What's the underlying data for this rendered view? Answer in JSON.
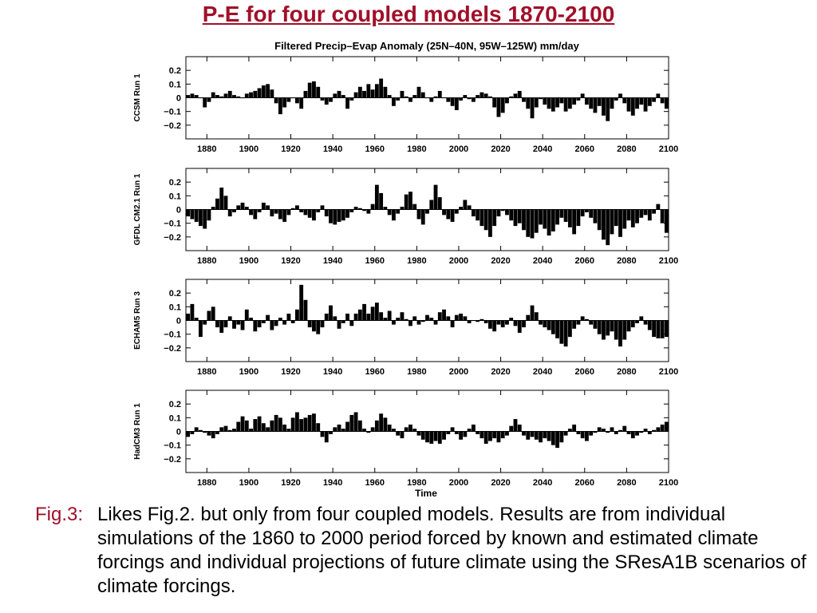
{
  "title": "P-E for four coupled models 1870-2100",
  "caption": {
    "label": "Fig.3:",
    "text": "Likes Fig.2. but only from four coupled models. Results are from individual simulations of the 1860 to 2000 period forced by known and estimated climate forcings and individual projections of future climate using the SResA1B scenarios of climate forcings."
  },
  "chart_title": "Filtered Precip–Evap Anomaly (25N–40N, 95W–125W) mm/day",
  "xlabel": "Time",
  "chart_data": [
    {
      "type": "bar",
      "ylabel": "CCSM Run 1",
      "xlim": [
        1870,
        2100
      ],
      "ylim": [
        -0.3,
        0.3
      ],
      "yticks": [
        0.2,
        0.1,
        0,
        -0.1,
        -0.2
      ],
      "ytick_labels": [
        "0.2",
        "0.1",
        "0",
        "−0.1",
        "−0.2"
      ],
      "xticks": [
        1880,
        1900,
        1920,
        1940,
        1960,
        1980,
        2000,
        2020,
        2040,
        2060,
        2080,
        2100
      ],
      "x": [
        1871,
        1873,
        1875,
        1877,
        1879,
        1881,
        1883,
        1885,
        1887,
        1889,
        1891,
        1893,
        1895,
        1897,
        1899,
        1901,
        1903,
        1905,
        1907,
        1909,
        1911,
        1913,
        1915,
        1917,
        1919,
        1921,
        1923,
        1925,
        1927,
        1929,
        1931,
        1933,
        1935,
        1937,
        1939,
        1941,
        1943,
        1945,
        1947,
        1949,
        1951,
        1953,
        1955,
        1957,
        1959,
        1961,
        1963,
        1965,
        1967,
        1969,
        1971,
        1973,
        1975,
        1977,
        1979,
        1981,
        1983,
        1985,
        1987,
        1989,
        1991,
        1993,
        1995,
        1997,
        1999,
        2001,
        2003,
        2005,
        2007,
        2009,
        2011,
        2013,
        2015,
        2017,
        2019,
        2021,
        2023,
        2025,
        2027,
        2029,
        2031,
        2033,
        2035,
        2037,
        2039,
        2041,
        2043,
        2045,
        2047,
        2049,
        2051,
        2053,
        2055,
        2057,
        2059,
        2061,
        2063,
        2065,
        2067,
        2069,
        2071,
        2073,
        2075,
        2077,
        2079,
        2081,
        2083,
        2085,
        2087,
        2089,
        2091,
        2093,
        2095,
        2097,
        2099
      ],
      "values": [
        0.02,
        0.03,
        0.02,
        0.0,
        -0.07,
        -0.03,
        0.04,
        0.02,
        0.01,
        0.03,
        0.05,
        0.02,
        0.01,
        0.0,
        0.03,
        0.04,
        0.05,
        0.07,
        0.09,
        0.1,
        0.06,
        -0.04,
        -0.12,
        -0.07,
        -0.03,
        0.0,
        -0.04,
        -0.08,
        0.05,
        0.11,
        0.12,
        0.08,
        -0.02,
        -0.05,
        -0.03,
        0.03,
        0.05,
        0.02,
        -0.08,
        -0.02,
        0.04,
        0.08,
        0.05,
        0.1,
        0.06,
        0.1,
        0.14,
        0.08,
        0.02,
        -0.06,
        -0.02,
        0.05,
        0.01,
        -0.03,
        0.02,
        0.08,
        0.04,
        0.0,
        -0.03,
        0.01,
        0.05,
        0.0,
        -0.03,
        -0.06,
        -0.09,
        -0.02,
        0.02,
        -0.01,
        -0.03,
        0.02,
        0.04,
        0.03,
        0.01,
        -0.07,
        -0.14,
        -0.11,
        -0.04,
        0.01,
        0.03,
        0.05,
        -0.03,
        -0.08,
        -0.15,
        -0.07,
        -0.01,
        -0.05,
        -0.08,
        -0.1,
        -0.07,
        -0.04,
        -0.1,
        -0.08,
        -0.05,
        -0.02,
        0.03,
        -0.05,
        -0.08,
        -0.11,
        -0.06,
        -0.13,
        -0.17,
        -0.08,
        -0.02,
        0.03,
        -0.04,
        -0.1,
        -0.13,
        -0.08,
        -0.05,
        -0.1,
        -0.06,
        -0.03,
        0.03,
        -0.04,
        -0.08
      ]
    },
    {
      "type": "bar",
      "ylabel": "GFDL CM2.1 Run 1",
      "xlim": [
        1870,
        2100
      ],
      "ylim": [
        -0.3,
        0.3
      ],
      "yticks": [
        0.2,
        0.1,
        0,
        -0.1,
        -0.2
      ],
      "ytick_labels": [
        "0.2",
        "0.1",
        "0",
        "−0.1",
        "−0.2"
      ],
      "xticks": [
        1880,
        1900,
        1920,
        1940,
        1960,
        1980,
        2000,
        2020,
        2040,
        2060,
        2080,
        2100
      ],
      "x": [
        1871,
        1873,
        1875,
        1877,
        1879,
        1881,
        1883,
        1885,
        1887,
        1889,
        1891,
        1893,
        1895,
        1897,
        1899,
        1901,
        1903,
        1905,
        1907,
        1909,
        1911,
        1913,
        1915,
        1917,
        1919,
        1921,
        1923,
        1925,
        1927,
        1929,
        1931,
        1933,
        1935,
        1937,
        1939,
        1941,
        1943,
        1945,
        1947,
        1949,
        1951,
        1953,
        1955,
        1957,
        1959,
        1961,
        1963,
        1965,
        1967,
        1969,
        1971,
        1973,
        1975,
        1977,
        1979,
        1981,
        1983,
        1985,
        1987,
        1989,
        1991,
        1993,
        1995,
        1997,
        1999,
        2001,
        2003,
        2005,
        2007,
        2009,
        2011,
        2013,
        2015,
        2017,
        2019,
        2021,
        2023,
        2025,
        2027,
        2029,
        2031,
        2033,
        2035,
        2037,
        2039,
        2041,
        2043,
        2045,
        2047,
        2049,
        2051,
        2053,
        2055,
        2057,
        2059,
        2061,
        2063,
        2065,
        2067,
        2069,
        2071,
        2073,
        2075,
        2077,
        2079,
        2081,
        2083,
        2085,
        2087,
        2089,
        2091,
        2093,
        2095,
        2097,
        2099
      ],
      "values": [
        -0.05,
        -0.07,
        -0.09,
        -0.12,
        -0.14,
        -0.08,
        0.02,
        0.08,
        0.16,
        0.1,
        -0.05,
        -0.02,
        0.03,
        0.05,
        0.02,
        -0.04,
        -0.07,
        -0.02,
        0.05,
        0.03,
        -0.05,
        -0.03,
        -0.07,
        -0.09,
        -0.04,
        0.01,
        0.03,
        -0.02,
        -0.04,
        -0.06,
        -0.08,
        -0.02,
        0.03,
        -0.05,
        -0.1,
        -0.11,
        -0.09,
        -0.08,
        -0.06,
        -0.02,
        0.02,
        0.01,
        -0.01,
        -0.03,
        0.04,
        0.18,
        0.12,
        0.02,
        -0.04,
        -0.08,
        -0.03,
        0.02,
        0.11,
        0.13,
        0.04,
        -0.07,
        -0.11,
        -0.03,
        0.07,
        0.18,
        0.09,
        -0.04,
        -0.07,
        -0.09,
        -0.03,
        0.02,
        0.07,
        0.03,
        -0.05,
        -0.08,
        -0.12,
        -0.15,
        -0.2,
        -0.12,
        -0.05,
        -0.01,
        -0.04,
        -0.08,
        -0.12,
        -0.1,
        -0.15,
        -0.2,
        -0.21,
        -0.17,
        -0.11,
        -0.14,
        -0.19,
        -0.16,
        -0.11,
        -0.06,
        -0.09,
        -0.13,
        -0.18,
        -0.12,
        -0.05,
        -0.02,
        -0.06,
        -0.1,
        -0.15,
        -0.22,
        -0.26,
        -0.18,
        -0.12,
        -0.2,
        -0.14,
        -0.08,
        -0.13,
        -0.1,
        -0.06,
        -0.04,
        -0.08,
        -0.03,
        0.04,
        -0.1,
        -0.17
      ]
    },
    {
      "type": "bar",
      "ylabel": "ECHAM5 Run 3",
      "xlim": [
        1870,
        2100
      ],
      "ylim": [
        -0.3,
        0.3
      ],
      "yticks": [
        0.2,
        0.1,
        0,
        -0.1,
        -0.2
      ],
      "ytick_labels": [
        "0.2",
        "0.1",
        "0",
        "−0.1",
        "−0.2"
      ],
      "xticks": [
        1880,
        1900,
        1920,
        1940,
        1960,
        1980,
        2000,
        2020,
        2040,
        2060,
        2080,
        2100
      ],
      "x": [
        1871,
        1873,
        1875,
        1877,
        1879,
        1881,
        1883,
        1885,
        1887,
        1889,
        1891,
        1893,
        1895,
        1897,
        1899,
        1901,
        1903,
        1905,
        1907,
        1909,
        1911,
        1913,
        1915,
        1917,
        1919,
        1921,
        1923,
        1925,
        1927,
        1929,
        1931,
        1933,
        1935,
        1937,
        1939,
        1941,
        1943,
        1945,
        1947,
        1949,
        1951,
        1953,
        1955,
        1957,
        1959,
        1961,
        1963,
        1965,
        1967,
        1969,
        1971,
        1973,
        1975,
        1977,
        1979,
        1981,
        1983,
        1985,
        1987,
        1989,
        1991,
        1993,
        1995,
        1997,
        1999,
        2001,
        2003,
        2005,
        2007,
        2009,
        2011,
        2013,
        2015,
        2017,
        2019,
        2021,
        2023,
        2025,
        2027,
        2029,
        2031,
        2033,
        2035,
        2037,
        2039,
        2041,
        2043,
        2045,
        2047,
        2049,
        2051,
        2053,
        2055,
        2057,
        2059,
        2061,
        2063,
        2065,
        2067,
        2069,
        2071,
        2073,
        2075,
        2077,
        2079,
        2081,
        2083,
        2085,
        2087,
        2089,
        2091,
        2093,
        2095,
        2097,
        2099
      ],
      "values": [
        0.05,
        0.12,
        0.02,
        -0.12,
        -0.03,
        0.07,
        0.1,
        -0.05,
        -0.09,
        -0.05,
        0.03,
        -0.06,
        -0.03,
        -0.07,
        0.08,
        0.02,
        -0.08,
        -0.05,
        -0.02,
        0.04,
        -0.07,
        -0.04,
        0.02,
        -0.03,
        0.05,
        -0.02,
        0.08,
        0.26,
        0.15,
        -0.05,
        -0.08,
        -0.1,
        -0.05,
        0.05,
        0.11,
        0.03,
        -0.06,
        -0.02,
        0.05,
        -0.04,
        0.05,
        0.08,
        0.12,
        0.05,
        0.1,
        0.13,
        0.06,
        0.02,
        0.07,
        -0.03,
        0.02,
        0.06,
        0.01,
        -0.04,
        0.03,
        -0.03,
        -0.01,
        0.04,
        0.02,
        -0.03,
        0.06,
        0.08,
        0.03,
        -0.05,
        0.04,
        0.05,
        0.03,
        -0.02,
        0.0,
        -0.01,
        0.01,
        -0.02,
        -0.06,
        -0.08,
        -0.03,
        -0.05,
        -0.03,
        0.02,
        -0.04,
        -0.09,
        -0.05,
        0.04,
        0.11,
        0.06,
        -0.03,
        -0.05,
        -0.07,
        -0.1,
        -0.13,
        -0.17,
        -0.19,
        -0.12,
        -0.06,
        -0.03,
        0.03,
        0.01,
        -0.03,
        -0.06,
        -0.1,
        -0.14,
        -0.11,
        -0.08,
        -0.14,
        -0.19,
        -0.14,
        -0.08,
        -0.05,
        -0.02,
        0.03,
        -0.03,
        -0.07,
        -0.12,
        -0.13,
        -0.13,
        -0.12
      ]
    },
    {
      "type": "bar",
      "ylabel": "HadCM3 Run 1",
      "xlim": [
        1870,
        2100
      ],
      "ylim": [
        -0.3,
        0.3
      ],
      "yticks": [
        0.2,
        0.1,
        0,
        -0.1,
        -0.2
      ],
      "ytick_labels": [
        "0.2",
        "0.1",
        "0",
        "−0.1",
        "−0.2"
      ],
      "xticks": [
        1880,
        1900,
        1920,
        1940,
        1960,
        1980,
        2000,
        2020,
        2040,
        2060,
        2080,
        2100
      ],
      "x": [
        1871,
        1873,
        1875,
        1877,
        1879,
        1881,
        1883,
        1885,
        1887,
        1889,
        1891,
        1893,
        1895,
        1897,
        1899,
        1901,
        1903,
        1905,
        1907,
        1909,
        1911,
        1913,
        1915,
        1917,
        1919,
        1921,
        1923,
        1925,
        1927,
        1929,
        1931,
        1933,
        1935,
        1937,
        1939,
        1941,
        1943,
        1945,
        1947,
        1949,
        1951,
        1953,
        1955,
        1957,
        1959,
        1961,
        1963,
        1965,
        1967,
        1969,
        1971,
        1973,
        1975,
        1977,
        1979,
        1981,
        1983,
        1985,
        1987,
        1989,
        1991,
        1993,
        1995,
        1997,
        1999,
        2001,
        2003,
        2005,
        2007,
        2009,
        2011,
        2013,
        2015,
        2017,
        2019,
        2021,
        2023,
        2025,
        2027,
        2029,
        2031,
        2033,
        2035,
        2037,
        2039,
        2041,
        2043,
        2045,
        2047,
        2049,
        2051,
        2053,
        2055,
        2057,
        2059,
        2061,
        2063,
        2065,
        2067,
        2069,
        2071,
        2073,
        2075,
        2077,
        2079,
        2081,
        2083,
        2085,
        2087,
        2089,
        2091,
        2093,
        2095,
        2097,
        2099
      ],
      "values": [
        -0.04,
        -0.02,
        0.03,
        0.01,
        -0.01,
        -0.03,
        -0.05,
        -0.02,
        0.03,
        0.04,
        0.01,
        0.02,
        0.07,
        0.11,
        0.08,
        0.02,
        0.09,
        0.11,
        0.06,
        0.03,
        0.08,
        0.12,
        0.1,
        0.05,
        0.02,
        0.1,
        0.14,
        0.09,
        0.1,
        0.12,
        0.13,
        0.06,
        -0.04,
        -0.08,
        -0.02,
        0.03,
        0.05,
        0.02,
        0.07,
        0.12,
        0.14,
        0.08,
        0.02,
        -0.01,
        0.03,
        0.08,
        0.13,
        0.1,
        0.05,
        0.02,
        -0.03,
        -0.05,
        0.03,
        0.05,
        0.02,
        -0.03,
        -0.06,
        -0.08,
        -0.09,
        -0.07,
        -0.09,
        -0.06,
        -0.02,
        0.03,
        -0.02,
        -0.06,
        -0.04,
        0.02,
        0.05,
        -0.02,
        -0.05,
        -0.09,
        -0.07,
        -0.05,
        -0.08,
        -0.05,
        -0.03,
        0.04,
        0.09,
        0.05,
        -0.03,
        -0.06,
        -0.04,
        -0.06,
        -0.08,
        -0.05,
        -0.07,
        -0.1,
        -0.12,
        -0.08,
        -0.03,
        0.02,
        0.05,
        -0.02,
        -0.05,
        -0.07,
        -0.03,
        -0.01,
        0.03,
        0.02,
        -0.01,
        0.03,
        -0.02,
        0.01,
        0.04,
        -0.02,
        -0.05,
        -0.03,
        -0.01,
        0.02,
        -0.02,
        0.01,
        0.03,
        0.05,
        0.07
      ]
    }
  ]
}
